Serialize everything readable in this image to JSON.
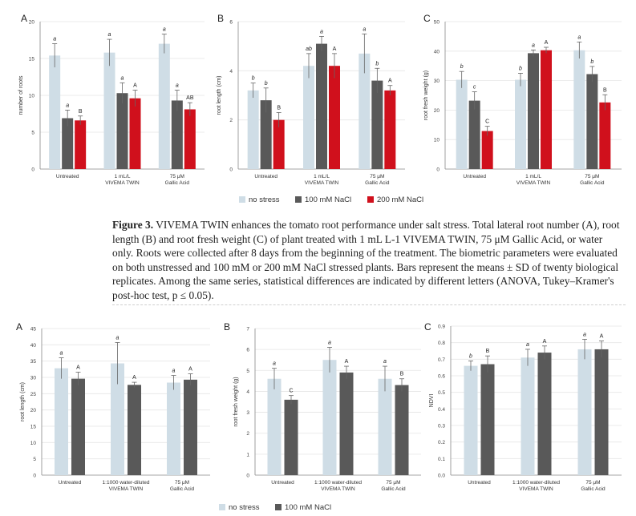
{
  "colors": {
    "no_stress": "#cfdde6",
    "nacl100": "#595959",
    "nacl200": "#d0101c",
    "grid": "#e5e5e5",
    "axis": "#888888"
  },
  "caption": {
    "figure_label": "Figure 3.",
    "text": "VIVEMA TWIN enhances the tomato root performance under salt stress. Total lateral root number (A), root length (B) and root fresh weight (C) of plant treated with 1 mL L-1 VIVEMA TWIN, 75 μM Gallic Acid, or water only. Roots were collected after 8 days from the beginning of the treatment. The biometric parameters were evaluated on both unstressed and 100 mM or 200 mM NaCl stressed plants. Bars represent the means ± SD of twenty biological replicates. Among the same series, statistical differences are indicated by different letters (ANOVA, Tukey–Kramer's post-hoc test, p ≤ 0.05)."
  },
  "legends": {
    "top": [
      "no stress",
      "100 mM NaCl",
      "200 mM NaCl"
    ],
    "bottom": [
      "no stress",
      "100 mM NaCl"
    ]
  },
  "chart_data": [
    {
      "panel": "A",
      "type": "bar",
      "ylabel": "number of roots",
      "ylim": [
        0,
        20
      ],
      "yticks": [
        0,
        5,
        10,
        15,
        20
      ],
      "categories": [
        [
          "Untreated"
        ],
        [
          "1 mL/L",
          "VIVEMA    TWIN"
        ],
        [
          "75 μM",
          "Gallic Acid"
        ]
      ],
      "series": [
        {
          "name": "no stress",
          "values": [
            15.4,
            15.8,
            17.0
          ],
          "errors": [
            1.6,
            1.8,
            1.3
          ],
          "letters": [
            "a",
            "a",
            "a"
          ]
        },
        {
          "name": "100 mM NaCl",
          "values": [
            6.9,
            10.3,
            9.3
          ],
          "errors": [
            1.1,
            1.4,
            1.4
          ],
          "letters": [
            "a",
            "a",
            "a"
          ]
        },
        {
          "name": "200 mM NaCl",
          "values": [
            6.6,
            9.6,
            8.1
          ],
          "errors": [
            0.6,
            1.1,
            0.9
          ],
          "letters": [
            "B",
            "A",
            "AB"
          ]
        }
      ]
    },
    {
      "panel": "B",
      "type": "bar",
      "ylabel": "root length (cm)",
      "ylim": [
        0,
        6
      ],
      "yticks": [
        0,
        2,
        4,
        6
      ],
      "categories": [
        [
          "Untreated"
        ],
        [
          "1 mL/L",
          "VIVEMA    TWIN"
        ],
        [
          "75 μM",
          "Gallic Acid"
        ]
      ],
      "series": [
        {
          "name": "no stress",
          "values": [
            3.2,
            4.2,
            4.7
          ],
          "errors": [
            0.3,
            0.5,
            0.8
          ],
          "letters": [
            "b",
            "ab",
            "a"
          ]
        },
        {
          "name": "100 mM NaCl",
          "values": [
            2.8,
            5.1,
            3.6
          ],
          "errors": [
            0.5,
            0.3,
            0.5
          ],
          "letters": [
            "b",
            "a",
            "b"
          ]
        },
        {
          "name": "200 mM NaCl",
          "values": [
            2.0,
            4.2,
            3.2
          ],
          "errors": [
            0.3,
            0.5,
            0.2
          ],
          "letters": [
            "B",
            "A",
            "A"
          ]
        }
      ]
    },
    {
      "panel": "C",
      "type": "bar",
      "ylabel": "root fresh weight (g)",
      "ylim": [
        0,
        50
      ],
      "yticks": [
        0,
        10,
        20,
        30,
        40,
        50
      ],
      "categories": [
        [
          "Untreated"
        ],
        [
          "1 mL/L",
          "VIVEMA    TWIN"
        ],
        [
          "75 μM",
          "Gallic Acid"
        ]
      ],
      "series": [
        {
          "name": "no stress",
          "values": [
            30.3,
            30.3,
            40.3
          ],
          "errors": [
            2.8,
            2.2,
            2.8
          ],
          "letters": [
            "b",
            "b",
            "a"
          ]
        },
        {
          "name": "100 mM NaCl",
          "values": [
            23.2,
            39.3,
            32.2
          ],
          "errors": [
            3.0,
            1.1,
            2.6
          ],
          "letters": [
            "c",
            "a",
            "b"
          ]
        },
        {
          "name": "200 mM NaCl",
          "values": [
            12.9,
            40.3,
            22.6
          ],
          "errors": [
            1.6,
            1.0,
            2.6
          ],
          "letters": [
            "C",
            "A",
            "B"
          ]
        }
      ]
    },
    {
      "panel": "A",
      "type": "bar",
      "ylabel": "root length (cm)",
      "ylim": [
        0,
        45
      ],
      "yticks": [
        0,
        5,
        10,
        15,
        20,
        25,
        30,
        35,
        40,
        45
      ],
      "categories": [
        [
          "Untreated"
        ],
        [
          "1:1000 water-diluted",
          "VIVEMA    TWIN"
        ],
        [
          "75 μM",
          "Gallic Acid"
        ]
      ],
      "series": [
        {
          "name": "no stress",
          "values": [
            32.8,
            34.3,
            28.4
          ],
          "errors": [
            3.2,
            6.4,
            2.2
          ],
          "letters": [
            "a",
            "a",
            "a"
          ]
        },
        {
          "name": "100 mM NaCl",
          "values": [
            29.6,
            27.7,
            29.3
          ],
          "errors": [
            2.0,
            0.8,
            1.8
          ],
          "letters": [
            "A",
            "A",
            "A"
          ]
        }
      ]
    },
    {
      "panel": "B",
      "type": "bar",
      "ylabel": "root fresh weight (g)",
      "ylim": [
        0,
        7
      ],
      "yticks": [
        0,
        1,
        2,
        3,
        4,
        5,
        6,
        7
      ],
      "categories": [
        [
          "Untreated"
        ],
        [
          "1:1000 water-diluted",
          "VIVEMA    TWIN"
        ],
        [
          "75 μM",
          "Gallic Acid"
        ]
      ],
      "series": [
        {
          "name": "no stress",
          "values": [
            4.6,
            5.5,
            4.6
          ],
          "errors": [
            0.5,
            0.6,
            0.6
          ],
          "letters": [
            "a",
            "a",
            "a"
          ]
        },
        {
          "name": "100 mM NaCl",
          "values": [
            3.6,
            4.9,
            4.3
          ],
          "errors": [
            0.2,
            0.3,
            0.3
          ],
          "letters": [
            "C",
            "A",
            "B"
          ]
        }
      ]
    },
    {
      "panel": "C",
      "type": "bar",
      "ylabel": "NDVI",
      "ylim": [
        0,
        0.9
      ],
      "yticks": [
        0,
        0.1,
        0.2,
        0.3,
        0.4,
        0.5,
        0.6,
        0.7,
        0.8,
        0.9
      ],
      "categories": [
        [
          "Untreated"
        ],
        [
          "1:1000 water-diluted",
          "VIVEMA    TWIN"
        ],
        [
          "75 μM",
          "Gallic Acid"
        ]
      ],
      "series": [
        {
          "name": "no stress",
          "values": [
            0.66,
            0.71,
            0.76
          ],
          "errors": [
            0.03,
            0.05,
            0.06
          ],
          "letters": [
            "b",
            "a",
            "a"
          ]
        },
        {
          "name": "100 mM NaCl",
          "values": [
            0.67,
            0.74,
            0.76
          ],
          "errors": [
            0.05,
            0.04,
            0.05
          ],
          "letters": [
            "B",
            "A",
            "A"
          ]
        }
      ]
    }
  ]
}
